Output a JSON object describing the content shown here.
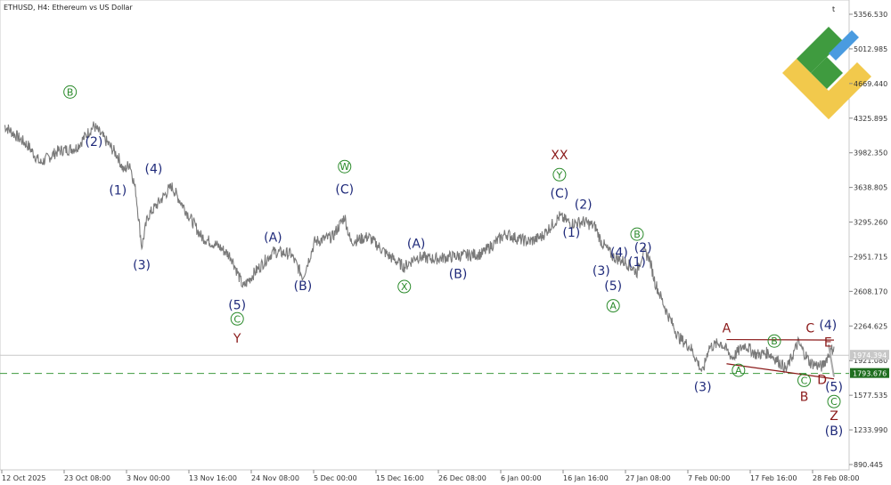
{
  "chart_data": {
    "type": "line",
    "title": "ETHUSD, H4:  Ethereum vs US Dollar",
    "corner_mark": "t",
    "ylim": [
      890.445,
      5356.53
    ],
    "y_ticks": [
      "5356.530",
      "5012.985",
      "4669.440",
      "4325.895",
      "3982.350",
      "3638.805",
      "3295.260",
      "2951.715",
      "2608.170",
      "2264.625",
      "1921.080",
      "1577.535",
      "1233.990",
      "890.445"
    ],
    "x_ticks": [
      "12 Oct 2025",
      "23 Oct 08:00",
      "3 Nov 00:00",
      "13 Nov 16:00",
      "24 Nov 08:00",
      "5 Dec 00:00",
      "15 Dec 16:00",
      "26 Dec 08:00",
      "6 Jan 00:00",
      "16 Jan 16:00",
      "27 Jan 08:00",
      "7 Feb 00:00",
      "17 Feb 16:00",
      "28 Feb 08:00"
    ],
    "current_price": "1974.394",
    "level_price": "1793.676",
    "grid": false,
    "series": [
      {
        "values": [
          {
            "x": "12 Oct 2025",
            "y": 4250
          },
          {
            "x": "16 Oct",
            "y": 4050
          },
          {
            "x": "18 Oct",
            "y": 3880
          },
          {
            "x": "21 Oct",
            "y": 4000
          },
          {
            "x": "24 Oct",
            "y": 4030
          },
          {
            "x": "26 Oct",
            "y": 4180
          },
          {
            "x": "27 Oct",
            "y": 4250
          },
          {
            "x": "29 Oct",
            "y": 4100
          },
          {
            "x": "31 Oct",
            "y": 3950
          },
          {
            "x": "1 Nov",
            "y": 3800
          },
          {
            "x": "2 Nov",
            "y": 3880
          },
          {
            "x": "3 Nov",
            "y": 3600
          },
          {
            "x": "4 Nov",
            "y": 3050
          },
          {
            "x": "5 Nov",
            "y": 3350
          },
          {
            "x": "7 Nov",
            "y": 3500
          },
          {
            "x": "9 Nov",
            "y": 3650
          },
          {
            "x": "10 Nov",
            "y": 3550
          },
          {
            "x": "12 Nov",
            "y": 3350
          },
          {
            "x": "14 Nov",
            "y": 3150
          },
          {
            "x": "17 Nov",
            "y": 3050
          },
          {
            "x": "19 Nov",
            "y": 2950
          },
          {
            "x": "21 Nov",
            "y": 2650
          },
          {
            "x": "23 Nov",
            "y": 2800
          },
          {
            "x": "26 Nov",
            "y": 3000
          },
          {
            "x": "29 Nov",
            "y": 2980
          },
          {
            "x": "1 Dec",
            "y": 2750
          },
          {
            "x": "3 Dec",
            "y": 3100
          },
          {
            "x": "6 Dec",
            "y": 3150
          },
          {
            "x": "8 Dec",
            "y": 3350
          },
          {
            "x": "9 Dec",
            "y": 3100
          },
          {
            "x": "12 Dec",
            "y": 3150
          },
          {
            "x": "15 Dec",
            "y": 2980
          },
          {
            "x": "18 Dec",
            "y": 2850
          },
          {
            "x": "20 Dec",
            "y": 2950
          },
          {
            "x": "23 Dec",
            "y": 2930
          },
          {
            "x": "27 Dec",
            "y": 2960
          },
          {
            "x": "31 Dec",
            "y": 2980
          },
          {
            "x": "2 Jan",
            "y": 3080
          },
          {
            "x": "4 Jan",
            "y": 3180
          },
          {
            "x": "6 Jan",
            "y": 3130
          },
          {
            "x": "8 Jan",
            "y": 3100
          },
          {
            "x": "10 Jan",
            "y": 3150
          },
          {
            "x": "13 Jan",
            "y": 3350
          },
          {
            "x": "15 Jan",
            "y": 3280
          },
          {
            "x": "17 Jan",
            "y": 3300
          },
          {
            "x": "19 Jan",
            "y": 3250
          },
          {
            "x": "20 Jan",
            "y": 3100
          },
          {
            "x": "22 Jan",
            "y": 2950
          },
          {
            "x": "24 Jan",
            "y": 2900
          },
          {
            "x": "26 Jan",
            "y": 2800
          },
          {
            "x": "27 Jan",
            "y": 3000
          },
          {
            "x": "28 Jan",
            "y": 2950
          },
          {
            "x": "29 Jan",
            "y": 2700
          },
          {
            "x": "31 Jan",
            "y": 2400
          },
          {
            "x": "2 Feb",
            "y": 2150
          },
          {
            "x": "4 Feb",
            "y": 2050
          },
          {
            "x": "6 Feb",
            "y": 1800
          },
          {
            "x": "7 Feb",
            "y": 2050
          },
          {
            "x": "9 Feb",
            "y": 2100
          },
          {
            "x": "11 Feb",
            "y": 1950
          },
          {
            "x": "13 Feb",
            "y": 2080
          },
          {
            "x": "15 Feb",
            "y": 1980
          },
          {
            "x": "17 Feb",
            "y": 2000
          },
          {
            "x": "19 Feb",
            "y": 1900
          },
          {
            "x": "20 Feb",
            "y": 1830
          },
          {
            "x": "22 Feb",
            "y": 2100
          },
          {
            "x": "24 Feb",
            "y": 1900
          },
          {
            "x": "26 Feb",
            "y": 1860
          },
          {
            "x": "27 Feb",
            "y": 1970
          },
          {
            "x": "28 Feb",
            "y": 2060
          }
        ]
      }
    ],
    "wave_labels": [
      {
        "text": "Ⓑ",
        "x": "23 Oct",
        "y": 4550,
        "color": "green"
      },
      {
        "text": "(2)",
        "x": "27 Oct",
        "y": 4050,
        "color": "blue"
      },
      {
        "text": "(1)",
        "x": "31 Oct",
        "y": 3570,
        "color": "blue"
      },
      {
        "text": "(4)",
        "x": "6 Nov",
        "y": 3780,
        "color": "blue"
      },
      {
        "text": "(3)",
        "x": "4 Nov",
        "y": 2830,
        "color": "blue"
      },
      {
        "text": "(5)",
        "x": "20 Nov",
        "y": 2430,
        "color": "blue"
      },
      {
        "text": "Ⓒ",
        "x": "20 Nov",
        "y": 2300,
        "color": "green"
      },
      {
        "text": "Y",
        "x": "20 Nov",
        "y": 2100,
        "color": "red"
      },
      {
        "text": "(A)",
        "x": "26 Nov",
        "y": 3100,
        "color": "blue"
      },
      {
        "text": "(B)",
        "x": "1 Dec",
        "y": 2620,
        "color": "blue"
      },
      {
        "text": "Ⓦ",
        "x": "8 Dec",
        "y": 3810,
        "color": "green"
      },
      {
        "text": "(C)",
        "x": "8 Dec",
        "y": 3580,
        "color": "blue"
      },
      {
        "text": "(A)",
        "x": "20 Dec",
        "y": 3040,
        "color": "blue"
      },
      {
        "text": "Ⓧ",
        "x": "18 Dec",
        "y": 2620,
        "color": "green"
      },
      {
        "text": "(B)",
        "x": "27 Dec",
        "y": 2740,
        "color": "blue"
      },
      {
        "text": "XX",
        "x": "13 Jan",
        "y": 3920,
        "color": "red"
      },
      {
        "text": "Ⓨ",
        "x": "13 Jan",
        "y": 3730,
        "color": "green"
      },
      {
        "text": "(C)",
        "x": "13 Jan",
        "y": 3540,
        "color": "blue"
      },
      {
        "text": "(2)",
        "x": "17 Jan",
        "y": 3430,
        "color": "blue"
      },
      {
        "text": "(1)",
        "x": "15 Jan",
        "y": 3150,
        "color": "blue"
      },
      {
        "text": "(4)",
        "x": "23 Jan",
        "y": 2950,
        "color": "blue"
      },
      {
        "text": "Ⓑ",
        "x": "26 Jan",
        "y": 3140,
        "color": "green"
      },
      {
        "text": "(2)",
        "x": "27 Jan",
        "y": 3000,
        "color": "blue"
      },
      {
        "text": "(1)",
        "x": "26 Jan",
        "y": 2860,
        "color": "blue"
      },
      {
        "text": "(3)",
        "x": "20 Jan",
        "y": 2770,
        "color": "blue"
      },
      {
        "text": "(5)",
        "x": "22 Jan",
        "y": 2620,
        "color": "blue"
      },
      {
        "text": "Ⓐ",
        "x": "22 Jan",
        "y": 2430,
        "color": "green"
      },
      {
        "text": "(3)",
        "x": "6 Feb",
        "y": 1620,
        "color": "blue"
      },
      {
        "text": "A",
        "x": "10 Feb",
        "y": 2200,
        "color": "red"
      },
      {
        "text": "Ⓐ",
        "x": "12 Feb",
        "y": 1790,
        "color": "green"
      },
      {
        "text": "Ⓑ",
        "x": "18 Feb",
        "y": 2080,
        "color": "green"
      },
      {
        "text": "C",
        "x": "24 Feb",
        "y": 2200,
        "color": "red"
      },
      {
        "text": "(4)",
        "x": "27 Feb",
        "y": 2230,
        "color": "blue"
      },
      {
        "text": "E",
        "x": "27 Feb",
        "y": 2060,
        "color": "red"
      },
      {
        "text": "Ⓒ",
        "x": "23 Feb",
        "y": 1690,
        "color": "green"
      },
      {
        "text": "D",
        "x": "26 Feb",
        "y": 1690,
        "color": "red"
      },
      {
        "text": "B",
        "x": "23 Feb",
        "y": 1520,
        "color": "red"
      },
      {
        "text": "(5)",
        "x": "28 Feb",
        "y": 1620,
        "color": "blue"
      },
      {
        "text": "Ⓒ",
        "x": "28 Feb",
        "y": 1480,
        "color": "green"
      },
      {
        "text": "Z",
        "x": "28 Feb",
        "y": 1330,
        "color": "red"
      },
      {
        "text": "(B)",
        "x": "28 Feb",
        "y": 1180,
        "color": "blue"
      }
    ],
    "trendlines": [
      {
        "from": {
          "x": "10 Feb",
          "y": 2130
        },
        "to": {
          "x": "28 Feb",
          "y": 2125
        },
        "color": "red"
      },
      {
        "from": {
          "x": "10 Feb",
          "y": 1890
        },
        "to": {
          "x": "28 Feb",
          "y": 1740
        },
        "color": "red"
      }
    ],
    "colors": {
      "price_line": "#7a7a7a",
      "green_level": "#3f9b3f",
      "blue_wave": "#1f2a7a",
      "green_wave": "#2a8a2a",
      "red_wave": "#8b1a1a"
    }
  }
}
